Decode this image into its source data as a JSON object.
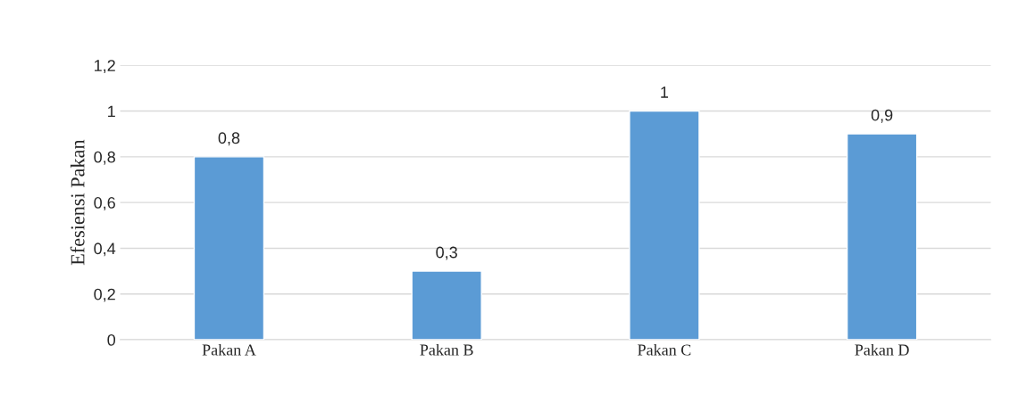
{
  "chart_data": {
    "type": "bar",
    "ylabel": "Efesiensi Pakan",
    "categories": [
      "Pakan A",
      "Pakan B",
      "Pakan C",
      "Pakan D"
    ],
    "values": [
      0.8,
      0.3,
      1,
      0.9
    ],
    "color": "#5b9bd5",
    "value_labels": [
      "0,8",
      "0,3",
      "1",
      "0,9"
    ],
    "ylim": [
      0,
      1.2
    ],
    "yticks": [
      0,
      {
        "value": 0.2,
        "label": "0,2"
      },
      {
        "value": 0.4,
        "label": "0,4"
      },
      {
        "value": 0.6,
        "label": "0,6"
      },
      {
        "value": 0.8,
        "label": "0,8"
      },
      1,
      {
        "value": 1.2,
        "label": "1,2"
      }
    ],
    "grid": "y"
  }
}
